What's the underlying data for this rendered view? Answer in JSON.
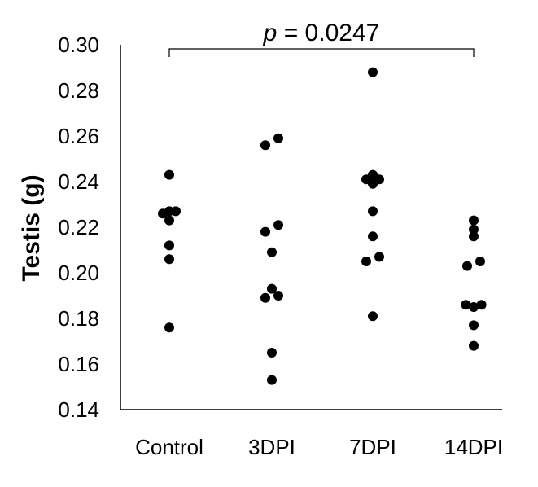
{
  "chart_data": {
    "type": "scatter",
    "title": "",
    "xlabel": "",
    "ylabel": "Testis (g)",
    "ylim": [
      0.14,
      0.3
    ],
    "yticks": [
      0.14,
      0.16,
      0.18,
      0.2,
      0.22,
      0.24,
      0.26,
      0.28,
      0.3
    ],
    "ytick_labels": [
      "0.14",
      "0.16",
      "0.18",
      "0.20",
      "0.22",
      "0.24",
      "0.26",
      "0.28",
      "0.30"
    ],
    "categories": [
      "Control",
      "3DPI",
      "7DPI",
      "14DPI"
    ],
    "grid": false,
    "marker_color": "#000000",
    "groups": [
      {
        "category": "Control",
        "points": [
          {
            "jitter": 0,
            "y": 0.243
          },
          {
            "jitter": -1,
            "y": 0.226
          },
          {
            "jitter": 0,
            "y": 0.227
          },
          {
            "jitter": 1,
            "y": 0.227
          },
          {
            "jitter": 0,
            "y": 0.223
          },
          {
            "jitter": 0,
            "y": 0.212
          },
          {
            "jitter": 0,
            "y": 0.206
          },
          {
            "jitter": 0,
            "y": 0.176
          }
        ]
      },
      {
        "category": "3DPI",
        "points": [
          {
            "jitter": 1,
            "y": 0.259
          },
          {
            "jitter": -1,
            "y": 0.256
          },
          {
            "jitter": 1,
            "y": 0.221
          },
          {
            "jitter": -1,
            "y": 0.218
          },
          {
            "jitter": 0,
            "y": 0.209
          },
          {
            "jitter": 0,
            "y": 0.193
          },
          {
            "jitter": 1,
            "y": 0.19
          },
          {
            "jitter": -1,
            "y": 0.189
          },
          {
            "jitter": 0,
            "y": 0.165
          },
          {
            "jitter": 0,
            "y": 0.153
          }
        ]
      },
      {
        "category": "7DPI",
        "points": [
          {
            "jitter": 0,
            "y": 0.288
          },
          {
            "jitter": 0,
            "y": 0.243
          },
          {
            "jitter": -1,
            "y": 0.241
          },
          {
            "jitter": 1,
            "y": 0.241
          },
          {
            "jitter": 0,
            "y": 0.239
          },
          {
            "jitter": 0,
            "y": 0.227
          },
          {
            "jitter": 0,
            "y": 0.216
          },
          {
            "jitter": 1,
            "y": 0.207
          },
          {
            "jitter": -1,
            "y": 0.205
          },
          {
            "jitter": 0,
            "y": 0.181
          }
        ]
      },
      {
        "category": "14DPI",
        "points": [
          {
            "jitter": 0,
            "y": 0.223
          },
          {
            "jitter": 0,
            "y": 0.219
          },
          {
            "jitter": 0,
            "y": 0.216
          },
          {
            "jitter": 1,
            "y": 0.205
          },
          {
            "jitter": -1,
            "y": 0.203
          },
          {
            "jitter": -1.2,
            "y": 0.186
          },
          {
            "jitter": 1.2,
            "y": 0.186
          },
          {
            "jitter": 0,
            "y": 0.185
          },
          {
            "jitter": 0,
            "y": 0.177
          },
          {
            "jitter": 0,
            "y": 0.168
          }
        ]
      }
    ],
    "annotations": [
      {
        "type": "significance-bracket",
        "from": "Control",
        "to": "14DPI",
        "p_symbol": "p",
        "p_value_text": " = 0.0247"
      }
    ]
  }
}
